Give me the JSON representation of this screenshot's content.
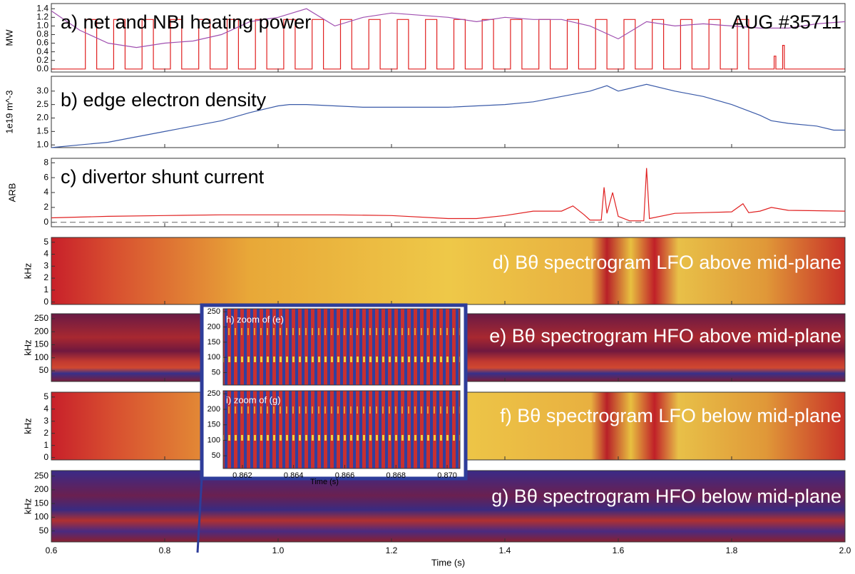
{
  "chart_data": [
    {
      "type": "line",
      "title": "a) net and NBI heating power",
      "annotation": "AUG #35711",
      "ylabel": "MW",
      "xlim": [
        0.6,
        2.0
      ],
      "ylim": [
        -0.07,
        1.52
      ],
      "yticks": [
        {
          "value": 0,
          "label": "0.0"
        },
        0.2,
        0.4,
        0.6,
        0.8,
        {
          "value": 1,
          "label": "1.0"
        },
        1.2,
        1.4
      ],
      "series": [
        {
          "color": "#e02020",
          "x": [
            0.6,
            0.66,
            0.66,
            0.68,
            0.68,
            0.71,
            0.71,
            0.73,
            0.73,
            0.76,
            0.76,
            0.78,
            0.78,
            0.81,
            0.81,
            0.83,
            0.83,
            0.86,
            0.86,
            0.88,
            0.88,
            0.91,
            0.91,
            0.93,
            0.93,
            0.96,
            0.96,
            0.98,
            0.98,
            1.01,
            1.01,
            1.03,
            1.03,
            1.06,
            1.06,
            1.08,
            1.08,
            1.11,
            1.11,
            1.13,
            1.13,
            1.16,
            1.16,
            1.18,
            1.18,
            1.21,
            1.21,
            1.23,
            1.23,
            1.26,
            1.26,
            1.28,
            1.28,
            1.31,
            1.31,
            1.33,
            1.33,
            1.36,
            1.36,
            1.38,
            1.38,
            1.41,
            1.41,
            1.43,
            1.43,
            1.46,
            1.46,
            1.48,
            1.48,
            1.51,
            1.51,
            1.53,
            1.53,
            1.56,
            1.56,
            1.58,
            1.58,
            1.61,
            1.61,
            1.63,
            1.63,
            1.66,
            1.66,
            1.68,
            1.68,
            1.71,
            1.71,
            1.73,
            1.73,
            1.76,
            1.76,
            1.78,
            1.78,
            1.81,
            1.81,
            1.83,
            1.83,
            1.875,
            1.875,
            1.878,
            1.878,
            1.89,
            1.89,
            1.893,
            1.893,
            2.0
          ],
          "values": [
            0,
            0,
            1.15,
            1.15,
            0,
            0,
            1.15,
            1.15,
            0,
            0,
            1.15,
            1.15,
            0,
            0,
            1.15,
            1.15,
            0,
            0,
            1.15,
            1.15,
            0,
            0,
            1.15,
            1.15,
            0,
            0,
            1.15,
            1.15,
            0,
            0,
            1.15,
            1.15,
            0,
            0,
            1.15,
            1.15,
            0,
            0,
            1.15,
            1.15,
            0,
            0,
            1.15,
            1.15,
            0,
            0,
            1.15,
            1.15,
            0,
            0,
            1.15,
            1.15,
            0,
            0,
            1.15,
            1.15,
            0,
            0,
            1.15,
            1.15,
            0,
            0,
            1.15,
            1.15,
            0,
            0,
            1.15,
            1.15,
            0,
            0,
            1.15,
            1.15,
            0,
            0,
            1.15,
            1.15,
            0,
            0,
            1.15,
            1.15,
            0,
            0,
            1.15,
            1.15,
            0,
            0,
            1.15,
            1.15,
            0,
            0,
            1.15,
            1.15,
            0,
            0,
            1.15,
            1.15,
            0,
            0,
            0.3,
            0.3,
            0,
            0,
            0.55,
            0.55,
            0,
            0
          ]
        },
        {
          "color": "#a050b0",
          "x": [
            0.6,
            0.65,
            0.7,
            0.75,
            0.8,
            0.85,
            0.9,
            0.95,
            1.0,
            1.05,
            1.1,
            1.15,
            1.2,
            1.25,
            1.3,
            1.35,
            1.4,
            1.45,
            1.5,
            1.55,
            1.6,
            1.65,
            1.7,
            1.75,
            1.8,
            1.85,
            1.9,
            1.95,
            2.0
          ],
          "values": [
            1.35,
            0.9,
            0.6,
            0.5,
            0.6,
            0.65,
            0.8,
            1.1,
            1.2,
            1.4,
            1.0,
            1.2,
            1.3,
            1.25,
            1.2,
            1.1,
            1.2,
            1.15,
            1.15,
            1.0,
            0.7,
            1.1,
            1.0,
            1.05,
            1.0,
            0.95,
            0.95,
            1.05,
            1.1
          ]
        }
      ]
    },
    {
      "type": "line",
      "title": "b) edge electron density",
      "ylabel": "1e19 m^-3",
      "xlim": [
        0.6,
        2.0
      ],
      "ylim": [
        0.9,
        3.55
      ],
      "yticks": [
        {
          "value": 1,
          "label": "1.0"
        },
        1.5,
        {
          "value": 2,
          "label": "2.0"
        },
        2.5,
        {
          "value": 3,
          "label": "3.0"
        }
      ],
      "series": [
        {
          "color": "#3a5aa8",
          "x": [
            0.6,
            0.65,
            0.7,
            0.75,
            0.8,
            0.85,
            0.9,
            0.95,
            1.0,
            1.02,
            1.05,
            1.1,
            1.15,
            1.2,
            1.25,
            1.3,
            1.35,
            1.4,
            1.45,
            1.5,
            1.55,
            1.58,
            1.6,
            1.62,
            1.65,
            1.7,
            1.75,
            1.8,
            1.85,
            1.87,
            1.9,
            1.95,
            1.98,
            2.0
          ],
          "values": [
            0.9,
            1.0,
            1.1,
            1.3,
            1.5,
            1.7,
            1.9,
            2.2,
            2.45,
            2.5,
            2.5,
            2.45,
            2.4,
            2.4,
            2.4,
            2.4,
            2.45,
            2.5,
            2.6,
            2.8,
            3.0,
            3.2,
            3.0,
            3.1,
            3.25,
            3.0,
            2.8,
            2.5,
            2.1,
            1.9,
            1.8,
            1.7,
            1.55,
            1.55
          ]
        }
      ]
    },
    {
      "type": "line",
      "title": "c) divertor shunt current",
      "ylabel": "ARB",
      "xlim": [
        0.6,
        2.0
      ],
      "ylim": [
        -0.6,
        8.6
      ],
      "yticks": [
        0,
        2,
        4,
        6,
        8
      ],
      "series": [
        {
          "color": "#e02020",
          "x": [
            0.6,
            0.7,
            0.8,
            0.9,
            1.0,
            1.1,
            1.2,
            1.3,
            1.35,
            1.4,
            1.45,
            1.5,
            1.52,
            1.54,
            1.55,
            1.57,
            1.575,
            1.58,
            1.59,
            1.6,
            1.62,
            1.645,
            1.65,
            1.655,
            1.7,
            1.75,
            1.8,
            1.82,
            1.83,
            1.85,
            1.87,
            1.9,
            2.0
          ],
          "values": [
            0.6,
            0.8,
            0.9,
            1.0,
            1.0,
            1.0,
            0.9,
            0.5,
            0.5,
            0.9,
            1.5,
            1.5,
            2.2,
            1.0,
            0.3,
            0.3,
            4.7,
            1.2,
            4.0,
            0.8,
            0.2,
            0.2,
            7.3,
            0.5,
            1.2,
            1.3,
            1.4,
            2.5,
            1.3,
            1.5,
            2.0,
            1.6,
            1.5
          ]
        }
      ]
    },
    {
      "type": "spectrogram",
      "title": "d) Bθ spectrogram LFO above mid-plane",
      "ylabel": "kHz",
      "xlim": [
        0.6,
        2.0
      ],
      "ylim": [
        -0.2,
        5.4
      ],
      "yticks": [
        0,
        1,
        2,
        3,
        4,
        5
      ]
    },
    {
      "type": "spectrogram",
      "title": "e) Bθ spectrogram HFO above mid-plane",
      "ylabel": "kHz",
      "xlim": [
        0.6,
        2.0
      ],
      "ylim": [
        9,
        269
      ],
      "yticks": [
        50,
        100,
        150,
        200,
        250
      ]
    },
    {
      "type": "spectrogram",
      "title": "f) Bθ spectrogram LFO below mid-plane",
      "ylabel": "kHz",
      "xlim": [
        0.6,
        2.0
      ],
      "ylim": [
        -0.2,
        5.4
      ],
      "yticks": [
        0,
        1,
        2,
        3,
        4,
        5
      ]
    },
    {
      "type": "spectrogram",
      "title": "g) Bθ spectrogram HFO below mid-plane",
      "ylabel": "kHz",
      "xlabel": "Time (s)",
      "xlim": [
        0.6,
        2.0
      ],
      "ylim": [
        10,
        270
      ],
      "yticks": [
        50,
        100,
        150,
        200,
        250
      ],
      "xticks": [
        0.6,
        0.8,
        {
          "value": 1,
          "label": "1.0"
        },
        1.2,
        1.4,
        1.6,
        1.8,
        {
          "value": 2,
          "label": "2.0"
        }
      ]
    },
    {
      "type": "spectrogram",
      "title": "h) zoom of (e)",
      "xlim": [
        0.86125,
        0.8705
      ],
      "ylim": [
        9,
        260
      ],
      "yticks": [
        50,
        100,
        150,
        200,
        250
      ]
    },
    {
      "type": "spectrogram",
      "title": "i) zoom of (g)",
      "xlabel": "Time (s)",
      "xlim": [
        0.86125,
        0.8705
      ],
      "ylim": [
        9,
        260
      ],
      "yticks": [
        50,
        100,
        150,
        200,
        250
      ],
      "xticks": [
        0.862,
        0.864,
        0.866,
        0.868,
        {
          "value": 0.87,
          "label": "0.870"
        }
      ]
    }
  ]
}
